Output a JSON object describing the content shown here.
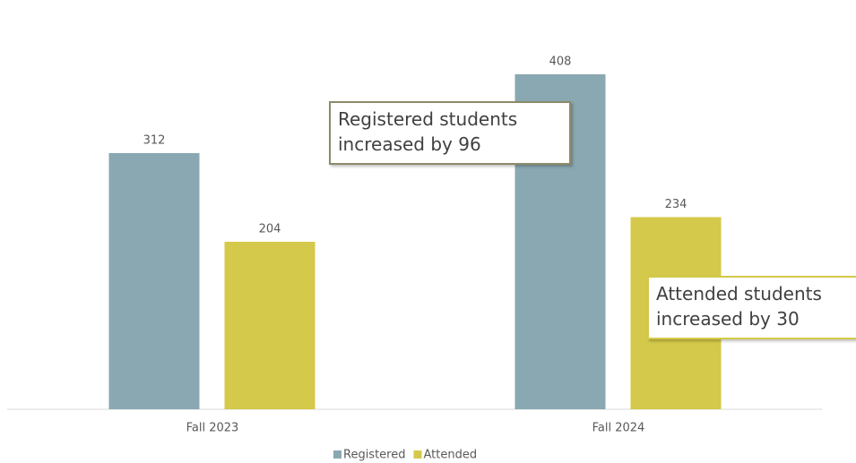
{
  "chart_data": {
    "type": "bar",
    "categories": [
      "Fall 2023",
      "Fall 2024"
    ],
    "series": [
      {
        "name": "Registered",
        "color": "#8aa8b2",
        "values": [
          312,
          408
        ]
      },
      {
        "name": "Attended",
        "color": "#d4c94a",
        "values": [
          204,
          234
        ]
      }
    ],
    "ylim": [
      0,
      450
    ],
    "annotations": [
      {
        "lines": [
          "Registered students",
          "increased by 96"
        ],
        "border": "#8c8a6a"
      },
      {
        "lines": [
          "Attended students",
          "increased by 30"
        ],
        "border": "#d4c94a"
      }
    ]
  }
}
